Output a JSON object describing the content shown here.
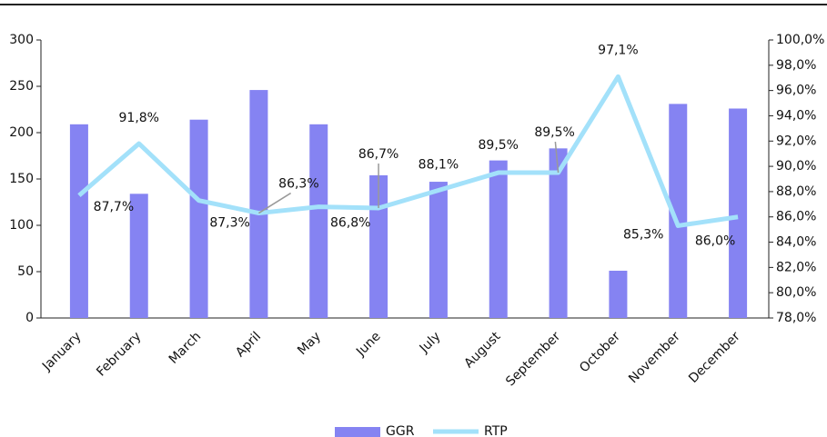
{
  "chart_data": {
    "type": "bar-line",
    "categories": [
      "January",
      "February",
      "March",
      "April",
      "May",
      "June",
      "July",
      "August",
      "September",
      "October",
      "November",
      "December"
    ],
    "series": [
      {
        "name": "GGR",
        "type": "bar",
        "color": "#8583f2",
        "values": [
          209,
          134,
          214,
          246,
          209,
          154,
          147,
          170,
          183,
          51,
          231,
          226
        ]
      },
      {
        "name": "RTP",
        "type": "line",
        "axis": "y2",
        "color": "#a3e1fa",
        "values": [
          87.7,
          91.8,
          87.3,
          86.3,
          86.8,
          86.7,
          88.1,
          89.5,
          89.5,
          97.1,
          85.3,
          86.0
        ],
        "value_labels": [
          "87,7%",
          "91,8%",
          "87,3%",
          "86,3%",
          "86,8%",
          "86,7%",
          "88,1%",
          "89,5%",
          "89,5%",
          "97,1%",
          "85,3%",
          "86,0%"
        ]
      }
    ],
    "ylim": [
      0,
      300
    ],
    "yticks": [
      0,
      50,
      100,
      150,
      200,
      250,
      300
    ],
    "y2lim": [
      78,
      100
    ],
    "y2ticks": [
      {
        "value": 78,
        "label": "78,0%"
      },
      {
        "value": 80,
        "label": "80,0%"
      },
      {
        "value": 82,
        "label": "82,0%"
      },
      {
        "value": 84,
        "label": "84,0%"
      },
      {
        "value": 86,
        "label": "86,0%"
      },
      {
        "value": 88,
        "label": "88,0%"
      },
      {
        "value": 90,
        "label": "90,0%"
      },
      {
        "value": 92,
        "label": "92,0%"
      },
      {
        "value": 94,
        "label": "94,0%"
      },
      {
        "value": 96,
        "label": "96,0%"
      },
      {
        "value": 98,
        "label": "98,0%"
      },
      {
        "value": 100,
        "label": "100,0%"
      }
    ],
    "legend": "bottom",
    "grid": false
  }
}
